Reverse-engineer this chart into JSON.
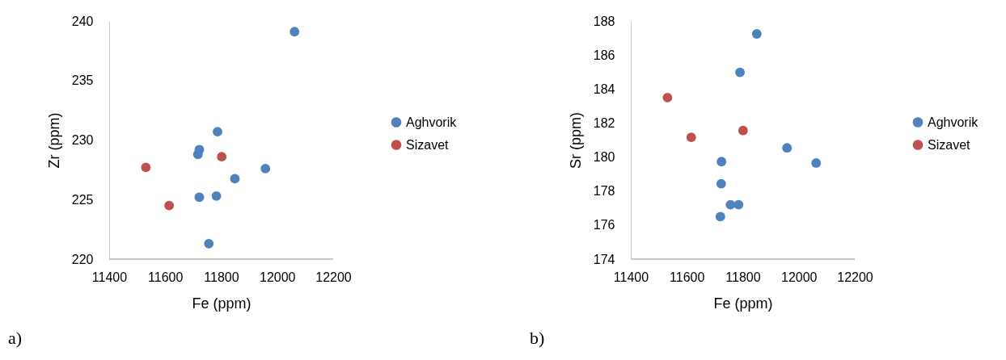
{
  "chart_data": [
    {
      "type": "scatter",
      "xlabel": "Fe (ppm)",
      "ylabel": "Zr (ppm)",
      "xlim": [
        11400,
        12200
      ],
      "xticks": [
        11400,
        11600,
        11800,
        12000,
        12200
      ],
      "ylim": [
        220,
        240
      ],
      "yticks": [
        220,
        225,
        230,
        235,
        240
      ],
      "grid": false,
      "legend": "right",
      "marker": "circle",
      "annotations": [
        "a)"
      ],
      "series": [
        {
          "name": "Aghvorik",
          "color": "#4f81bd",
          "x": [
            12062,
            11787,
            11722,
            11717,
            11958,
            11849,
            11722,
            11783,
            11756
          ],
          "values": [
            239.1,
            230.7,
            229.2,
            228.8,
            227.6,
            226.75,
            225.2,
            225.3,
            221.3
          ]
        },
        {
          "name": "Sizavet",
          "color": "#c0504d",
          "x": [
            11531,
            11614,
            11802
          ],
          "values": [
            227.7,
            224.5,
            228.6
          ]
        }
      ]
    },
    {
      "type": "scatter",
      "xlabel": "Fe (ppm)",
      "ylabel": "Sr (ppm)",
      "xlim": [
        11400,
        12200
      ],
      "xticks": [
        11400,
        11600,
        11800,
        12000,
        12200
      ],
      "ylim": [
        174,
        188
      ],
      "yticks": [
        174,
        176,
        178,
        180,
        182,
        184,
        186,
        188
      ],
      "grid": false,
      "legend": "right",
      "marker": "circle",
      "annotations": [
        "b)"
      ],
      "series": [
        {
          "name": "Aghvorik",
          "color": "#4f81bd",
          "x": [
            11850,
            11790,
            11958,
            12062,
            11724,
            11723,
            11756,
            11785,
            11720
          ],
          "values": [
            187.24,
            184.98,
            180.54,
            179.65,
            179.73,
            178.43,
            177.2,
            177.2,
            176.5
          ]
        },
        {
          "name": "Sizavet",
          "color": "#c0504d",
          "x": [
            11531,
            11616,
            11801
          ],
          "values": [
            183.5,
            181.16,
            181.56
          ]
        }
      ]
    }
  ]
}
